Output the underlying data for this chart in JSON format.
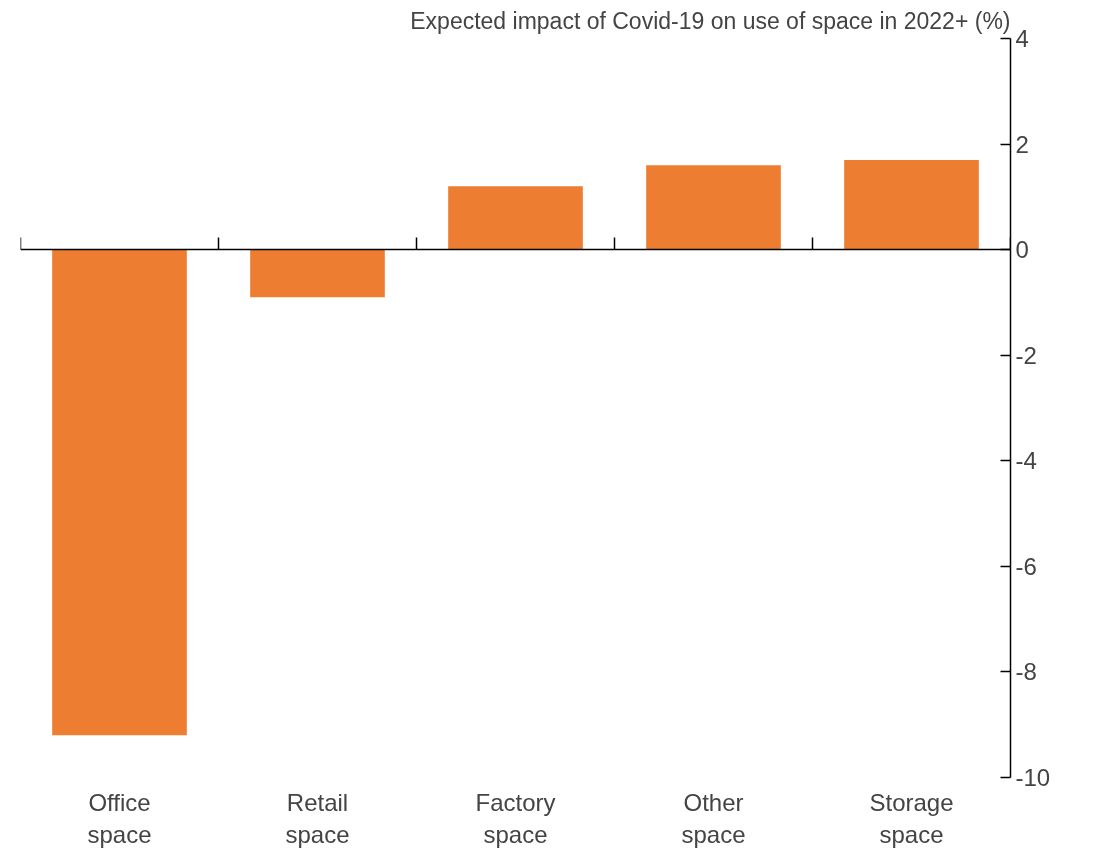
{
  "chart_data": {
    "type": "bar",
    "title": "Expected impact of Covid-19 on use of space in 2022+ (%)",
    "categories": [
      "Office space",
      "Retail space",
      "Factory space",
      "Other space",
      "Storage space"
    ],
    "values": [
      -9.2,
      -0.9,
      1.2,
      1.6,
      1.7
    ],
    "color": "#ed7d31",
    "ylim": [
      -10,
      4
    ],
    "yticks": [
      -10,
      -8,
      -6,
      -4,
      -2,
      0,
      2,
      4
    ]
  }
}
